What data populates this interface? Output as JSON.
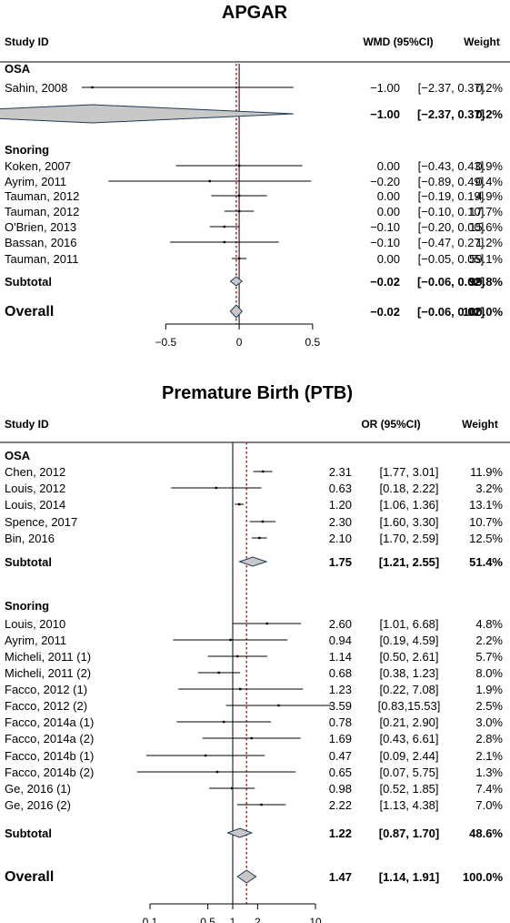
{
  "chart_data": [
    {
      "type": "forest",
      "title": "APGAR",
      "columns": {
        "study": "Study ID",
        "effect": "WMD (95%CI)",
        "weight": "Weight"
      },
      "scale": "linear",
      "xlim": [
        -0.7,
        0.6
      ],
      "ticks": [
        {
          "v": -0.5,
          "label": "−0.5"
        },
        {
          "v": 0,
          "label": "0"
        },
        {
          "v": 0.5,
          "label": "0.5"
        }
      ],
      "null_line": 0,
      "pooled_line": -0.02,
      "groups": [
        {
          "name": "OSA",
          "studies": [
            {
              "study": "Sahin, 2008",
              "est": -1.0,
              "lo": -2.37,
              "hi": 0.37,
              "effect": "−1.00",
              "ci": "[−2.37, 0.37]",
              "weight": "0.2%"
            }
          ],
          "subtotal": {
            "label": "Subtotal",
            "est": -1.0,
            "lo": -2.37,
            "hi": 0.37,
            "effect": "−1.00",
            "ci": "[−2.37, 0.37]",
            "weight": "0.2%"
          }
        },
        {
          "name": "Snoring",
          "studies": [
            {
              "study": "Koken, 2007",
              "est": 0.0,
              "lo": -0.43,
              "hi": 0.43,
              "effect": "0.00",
              "ci": "[−0.43, 0.43]",
              "weight": "0.9%"
            },
            {
              "study": "Ayrim, 2011",
              "est": -0.2,
              "lo": -0.89,
              "hi": 0.49,
              "effect": "−0.20",
              "ci": "[−0.89, 0.49]",
              "weight": "0.4%"
            },
            {
              "study": "Tauman, 2012",
              "est": 0.0,
              "lo": -0.19,
              "hi": 0.19,
              "effect": "0.00",
              "ci": "[−0.19, 0.19]",
              "weight": "4.9%"
            },
            {
              "study": "Tauman, 2012",
              "est": 0.0,
              "lo": -0.1,
              "hi": 0.1,
              "effect": "0.00",
              "ci": "[−0.10, 0.10]",
              "weight": "17.7%"
            },
            {
              "study": "O'Brien, 2013",
              "est": -0.1,
              "lo": -0.2,
              "hi": 0.0,
              "effect": "−0.10",
              "ci": "[−0.20, 0.00]",
              "weight": "15.6%"
            },
            {
              "study": "Bassan, 2016",
              "est": -0.1,
              "lo": -0.47,
              "hi": 0.27,
              "effect": "−0.10",
              "ci": "[−0.47, 0.27]",
              "weight": "1.2%"
            },
            {
              "study": "Tauman, 2011",
              "est": 0.0,
              "lo": -0.05,
              "hi": 0.05,
              "effect": "0.00",
              "ci": "[−0.05, 0.05]",
              "weight": "59.1%"
            }
          ],
          "subtotal": {
            "label": "Subtotal",
            "est": -0.02,
            "lo": -0.06,
            "hi": 0.02,
            "effect": "−0.02",
            "ci": "[−0.06, 0.02]",
            "weight": "99.8%"
          }
        }
      ],
      "overall": {
        "label": "Overall",
        "est": -0.02,
        "lo": -0.06,
        "hi": 0.02,
        "effect": "−0.02",
        "ci": "[−0.06, 0.02]",
        "weight": "100.0%"
      }
    },
    {
      "type": "forest",
      "title": "Premature Birth (PTB)",
      "columns": {
        "study": "Study ID",
        "effect": "OR (95%CI)",
        "weight": "Weight"
      },
      "scale": "log",
      "xlim": [
        0.1,
        10
      ],
      "ticks": [
        {
          "v": 0.1,
          "label": "0.1"
        },
        {
          "v": 0.5,
          "label": "0.5"
        },
        {
          "v": 1,
          "label": "1"
        },
        {
          "v": 2,
          "label": "2"
        },
        {
          "v": 10,
          "label": "10"
        }
      ],
      "null_line": 1,
      "pooled_line": 1.47,
      "groups": [
        {
          "name": "OSA",
          "studies": [
            {
              "study": "Chen, 2012",
              "est": 2.31,
              "lo": 1.77,
              "hi": 3.01,
              "effect": "2.31",
              "ci": "[1.77, 3.01]",
              "weight": "11.9%"
            },
            {
              "study": "Louis, 2012",
              "est": 0.63,
              "lo": 0.18,
              "hi": 2.22,
              "effect": "0.63",
              "ci": "[0.18, 2.22]",
              "weight": "3.2%"
            },
            {
              "study": "Louis, 2014",
              "est": 1.2,
              "lo": 1.06,
              "hi": 1.36,
              "effect": "1.20",
              "ci": "[1.06, 1.36]",
              "weight": "13.1%"
            },
            {
              "study": "Spence, 2017",
              "est": 2.3,
              "lo": 1.6,
              "hi": 3.3,
              "effect": "2.30",
              "ci": "[1.60, 3.30]",
              "weight": "10.7%"
            },
            {
              "study": "Bin, 2016",
              "est": 2.1,
              "lo": 1.7,
              "hi": 2.59,
              "effect": "2.10",
              "ci": "[1.70, 2.59]",
              "weight": "12.5%"
            }
          ],
          "subtotal": {
            "label": "Subtotal",
            "est": 1.75,
            "lo": 1.21,
            "hi": 2.55,
            "effect": "1.75",
            "ci": "[1.21, 2.55]",
            "weight": "51.4%"
          }
        },
        {
          "name": "Snoring",
          "studies": [
            {
              "study": "Louis, 2010",
              "est": 2.6,
              "lo": 1.01,
              "hi": 6.68,
              "effect": "2.60",
              "ci": "[1.01, 6.68]",
              "weight": "4.8%"
            },
            {
              "study": "Ayrim, 2011",
              "est": 0.94,
              "lo": 0.19,
              "hi": 4.59,
              "effect": "0.94",
              "ci": "[0.19, 4.59]",
              "weight": "2.2%"
            },
            {
              "study": "Micheli, 2011 (1)",
              "est": 1.14,
              "lo": 0.5,
              "hi": 2.61,
              "effect": "1.14",
              "ci": "[0.50, 2.61]",
              "weight": "5.7%"
            },
            {
              "study": "Micheli, 2011 (2)",
              "est": 0.68,
              "lo": 0.38,
              "hi": 1.23,
              "effect": "0.68",
              "ci": "[0.38, 1.23]",
              "weight": "8.0%"
            },
            {
              "study": "Facco, 2012 (1)",
              "est": 1.23,
              "lo": 0.22,
              "hi": 7.08,
              "effect": "1.23",
              "ci": "[0.22, 7.08]",
              "weight": "1.9%"
            },
            {
              "study": "Facco, 2012 (2)",
              "est": 3.59,
              "lo": 0.83,
              "hi": 15.53,
              "effect": "3.59",
              "ci": "[0.83,15.53]",
              "weight": "2.5%"
            },
            {
              "study": "Facco, 2014a (1)",
              "est": 0.78,
              "lo": 0.21,
              "hi": 2.9,
              "effect": "0.78",
              "ci": "[0.21, 2.90]",
              "weight": "3.0%"
            },
            {
              "study": "Facco, 2014a (2)",
              "est": 1.69,
              "lo": 0.43,
              "hi": 6.61,
              "effect": "1.69",
              "ci": "[0.43, 6.61]",
              "weight": "2.8%"
            },
            {
              "study": "Facco, 2014b (1)",
              "est": 0.47,
              "lo": 0.09,
              "hi": 2.44,
              "effect": "0.47",
              "ci": "[0.09, 2.44]",
              "weight": "2.1%"
            },
            {
              "study": "Facco, 2014b (2)",
              "est": 0.65,
              "lo": 0.07,
              "hi": 5.75,
              "effect": "0.65",
              "ci": "[0.07, 5.75]",
              "weight": "1.3%"
            },
            {
              "study": "Ge, 2016 (1)",
              "est": 0.98,
              "lo": 0.52,
              "hi": 1.85,
              "effect": "0.98",
              "ci": "[0.52, 1.85]",
              "weight": "7.4%"
            },
            {
              "study": "Ge, 2016 (2)",
              "est": 2.22,
              "lo": 1.13,
              "hi": 4.38,
              "effect": "2.22",
              "ci": "[1.13, 4.38]",
              "weight": "7.0%"
            }
          ],
          "subtotal": {
            "label": "Subtotal",
            "est": 1.22,
            "lo": 0.87,
            "hi": 1.7,
            "effect": "1.22",
            "ci": "[0.87, 1.70]",
            "weight": "48.6%"
          }
        }
      ],
      "overall": {
        "label": "Overall",
        "est": 1.47,
        "lo": 1.14,
        "hi": 1.91,
        "effect": "1.47",
        "ci": "[1.14, 1.91]",
        "weight": "100.0%"
      }
    }
  ],
  "colors": {
    "pooled_line": "#d62728",
    "diamond_fill": "#c8c8c8",
    "diamond_stroke": "#1f3a5a",
    "axis": "#000000"
  }
}
